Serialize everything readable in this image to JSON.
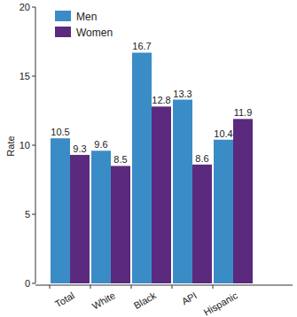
{
  "chart_data": {
    "type": "bar",
    "y_label": "Rate",
    "categories": [
      "Total",
      "White",
      "Black",
      "API",
      "Hispanic"
    ],
    "series": [
      {
        "name": "Men",
        "color": "#3a8cc6",
        "values": [
          10.5,
          9.6,
          16.7,
          13.3,
          10.4
        ]
      },
      {
        "name": "Women",
        "color": "#5b2a7e",
        "values": [
          9.3,
          8.5,
          12.8,
          8.6,
          11.9
        ]
      }
    ],
    "ylim": [
      0,
      20
    ],
    "yticks": [
      0,
      5,
      10,
      15,
      20
    ],
    "grid": false,
    "legend": "upper-left",
    "data_labels": true
  }
}
